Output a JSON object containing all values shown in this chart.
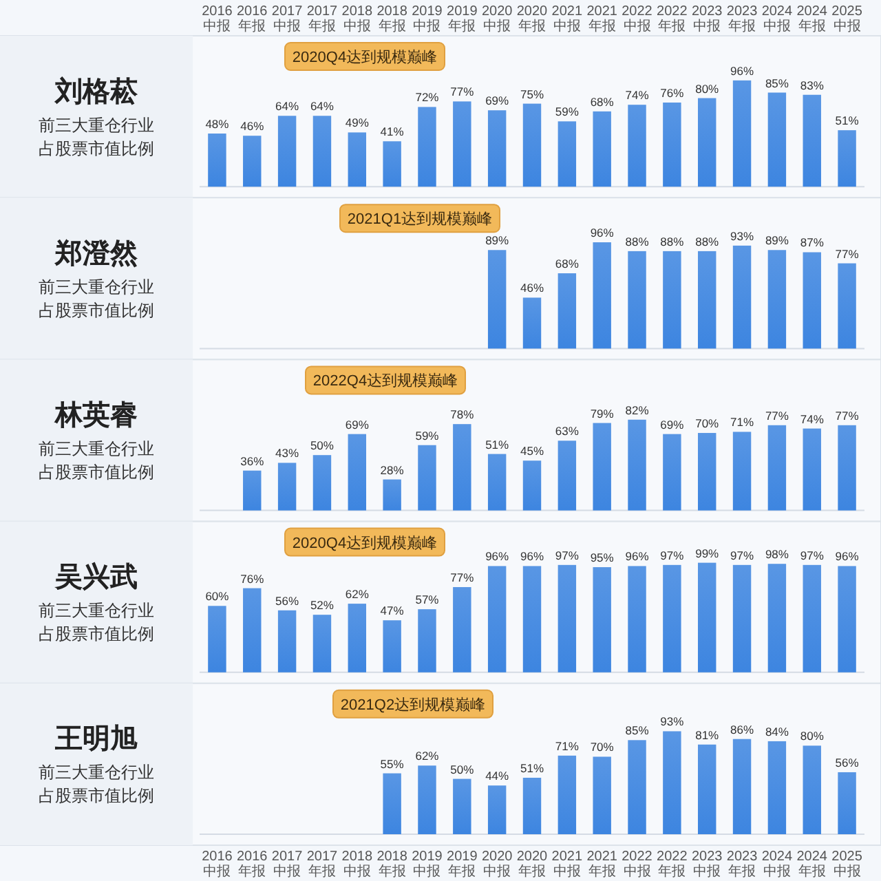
{
  "chart_data": [
    {
      "type": "bar",
      "title": "刘格菘",
      "subtitle": "前三大重仓行业占股票市值比例",
      "tick_labels": "x",
      "color": "#3d85e0",
      "categories": [
        "2016中报",
        "2016年报",
        "2017中报",
        "2017年报",
        "2018中报",
        "2018年报",
        "2019中报",
        "2019年报",
        "2020中报",
        "2020年报",
        "2021中报",
        "2021年报",
        "2022中报",
        "2022年报",
        "2023中报",
        "2023年报",
        "2024中报",
        "2024年报",
        "2025中报"
      ],
      "values": [
        48,
        46,
        64,
        64,
        49,
        41,
        72,
        77,
        69,
        75,
        59,
        68,
        74,
        76,
        80,
        96,
        85,
        83,
        51
      ],
      "value_labels": [
        "48%",
        "46%",
        "64%",
        "64%",
        "49%",
        "41%",
        "72%",
        "77%",
        "69%",
        "75%",
        "59%",
        "68%",
        "74%",
        "76%",
        "80%",
        "96%",
        "85%",
        "83%",
        "51%"
      ],
      "annotations": [
        "2020Q4达到规模巅峰"
      ]
    },
    {
      "type": "bar",
      "title": "郑澄然",
      "subtitle": "前三大重仓行业占股票市值比例",
      "tick_labels": false,
      "color": "#3d85e0",
      "categories": [
        null,
        null,
        null,
        null,
        null,
        null,
        null,
        null,
        null,
        null,
        null,
        null,
        null,
        null,
        null,
        null,
        null,
        null,
        null
      ],
      "values": [
        null,
        null,
        null,
        null,
        null,
        null,
        null,
        null,
        89,
        46,
        68,
        96,
        88,
        88,
        88,
        93,
        89,
        87,
        77
      ],
      "value_labels": [
        null,
        null,
        null,
        null,
        null,
        null,
        null,
        null,
        "89%",
        "46%",
        "68%",
        "96%",
        "88%",
        "88%",
        "88%",
        "93%",
        "89%",
        "87%",
        "77%"
      ],
      "annotations": [
        "2021Q1达到规模巅峰"
      ]
    },
    {
      "type": "bar",
      "title": "林英睿",
      "subtitle": "前三大重仓行业占股票市值比例",
      "tick_labels": false,
      "color": "#3d85e0",
      "categories": [
        null,
        null,
        null,
        null,
        null,
        null,
        null,
        null,
        null,
        null,
        null,
        null,
        null,
        null,
        null,
        null,
        null,
        null,
        null
      ],
      "values": [
        null,
        36,
        43,
        50,
        69,
        28,
        59,
        78,
        51,
        45,
        63,
        79,
        82,
        69,
        70,
        71,
        77,
        74,
        77
      ],
      "value_labels": [
        null,
        "36%",
        "43%",
        "50%",
        "69%",
        "28%",
        "59%",
        "78%",
        "51%",
        "45%",
        "63%",
        "79%",
        "82%",
        "69%",
        "70%",
        "71%",
        "77%",
        "74%",
        "77%"
      ],
      "annotations": [
        "2022Q4达到规模巅峰"
      ]
    },
    {
      "type": "bar",
      "title": "吴兴武",
      "subtitle": "前三大重仓行业占股票市值比例",
      "tick_labels": false,
      "color": "#3d85e0",
      "categories": [
        null,
        null,
        null,
        null,
        null,
        null,
        null,
        null,
        null,
        null,
        null,
        null,
        null,
        null,
        null,
        null,
        null,
        null,
        null
      ],
      "values": [
        60,
        76,
        56,
        52,
        62,
        47,
        57,
        77,
        96,
        96,
        97,
        95,
        96,
        97,
        99,
        97,
        98,
        97,
        96
      ],
      "value_labels": [
        "60%",
        "76%",
        "56%",
        "52%",
        "62%",
        "47%",
        "57%",
        "77%",
        "96%",
        "96%",
        "97%",
        "95%",
        "96%",
        "97%",
        "99%",
        "97%",
        "98%",
        "97%",
        "96%"
      ],
      "annotations": [
        "2020Q4达到规模巅峰"
      ]
    },
    {
      "type": "bar",
      "title": "王明旭",
      "subtitle": "前三大重仓行业占股票市值比例",
      "tick_labels": "x",
      "color": "#3d85e0",
      "categories": [
        "2016中报",
        "2016年报",
        "2017中报",
        "2017年报",
        "2018中报",
        "2018年报",
        "2019中报",
        "2019年报",
        "2020中报",
        "2020年报",
        "2021中报",
        "2021年报",
        "2022中报",
        "2022年报",
        "2023中报",
        "2023年报",
        "2024中报",
        "2024年报",
        "2025中报"
      ],
      "values": [
        null,
        null,
        null,
        null,
        null,
        55,
        62,
        50,
        44,
        51,
        71,
        70,
        85,
        93,
        81,
        86,
        84,
        80,
        56
      ],
      "value_labels": [
        null,
        null,
        null,
        null,
        null,
        "55%",
        "62%",
        "50%",
        "44%",
        "51%",
        "71%",
        "70%",
        "85%",
        "93%",
        "81%",
        "86%",
        "84%",
        "80%",
        "56%"
      ],
      "annotations": [
        "2021Q2达到规模巅峰"
      ]
    }
  ]
}
